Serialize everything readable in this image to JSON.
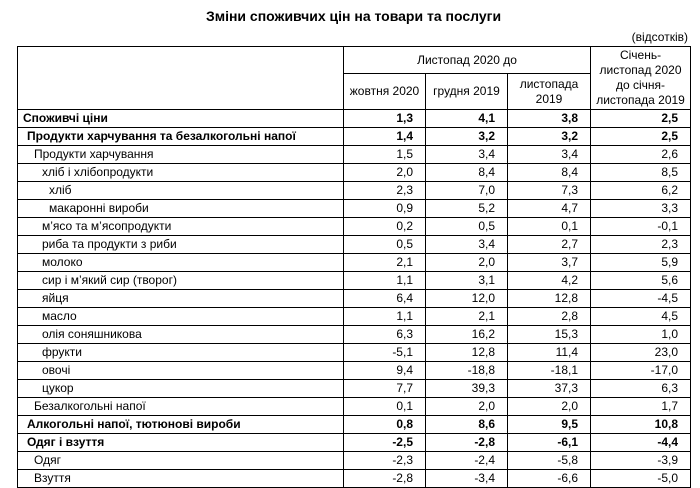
{
  "title": "Зміни споживчих цін на товари та послуги",
  "unit_note": "(відсотків)",
  "table": {
    "col_group_header": "Листопад 2020 до",
    "col_headers": [
      "жовтня 2020",
      "грудня 2019",
      "листопада 2019"
    ],
    "last_col_header": "Січень-листопад 2020 до січня-листопада 2019",
    "rows": [
      {
        "label": "Споживчі ціни",
        "bold": true,
        "indent": 0,
        "values": [
          "1,3",
          "4,1",
          "3,8",
          "2,5"
        ]
      },
      {
        "label": "Продукти харчування та безалкогольні напої",
        "bold": true,
        "indent": 1,
        "values": [
          "1,4",
          "3,2",
          "3,2",
          "2,5"
        ]
      },
      {
        "label": "Продукти харчування",
        "bold": false,
        "indent": 2,
        "values": [
          "1,5",
          "3,4",
          "3,4",
          "2,6"
        ]
      },
      {
        "label": "хліб і хлібопродукти",
        "bold": false,
        "indent": 3,
        "values": [
          "2,0",
          "8,4",
          "8,4",
          "8,5"
        ]
      },
      {
        "label": "хліб",
        "bold": false,
        "indent": 4,
        "values": [
          "2,3",
          "7,0",
          "7,3",
          "6,2"
        ]
      },
      {
        "label": "макаронні вироби",
        "bold": false,
        "indent": 4,
        "values": [
          "0,9",
          "5,2",
          "4,7",
          "3,3"
        ]
      },
      {
        "label": "м’ясо та м’ясопродукти",
        "bold": false,
        "indent": 3,
        "values": [
          "0,2",
          "0,5",
          "0,1",
          "-0,1"
        ]
      },
      {
        "label": "риба та продукти з риби",
        "bold": false,
        "indent": 3,
        "values": [
          "0,5",
          "3,4",
          "2,7",
          "2,3"
        ]
      },
      {
        "label": "молоко",
        "bold": false,
        "indent": 3,
        "values": [
          "2,1",
          "2,0",
          "3,7",
          "5,9"
        ]
      },
      {
        "label": "сир і м’який сир (творог)",
        "bold": false,
        "indent": 3,
        "values": [
          "1,1",
          "3,1",
          "4,2",
          "5,6"
        ]
      },
      {
        "label": "яйця",
        "bold": false,
        "indent": 3,
        "values": [
          "6,4",
          "12,0",
          "12,8",
          "-4,5"
        ]
      },
      {
        "label": "масло",
        "bold": false,
        "indent": 3,
        "values": [
          "1,1",
          "2,1",
          "2,8",
          "4,5"
        ]
      },
      {
        "label": "олія соняшникова",
        "bold": false,
        "indent": 3,
        "values": [
          "6,3",
          "16,2",
          "15,3",
          "1,0"
        ]
      },
      {
        "label": "фрукти",
        "bold": false,
        "indent": 3,
        "values": [
          "-5,1",
          "12,8",
          "11,4",
          "23,0"
        ]
      },
      {
        "label": "овочі",
        "bold": false,
        "indent": 3,
        "values": [
          "9,4",
          "-18,8",
          "-18,1",
          "-17,0"
        ]
      },
      {
        "label": "цукор",
        "bold": false,
        "indent": 3,
        "values": [
          "7,7",
          "39,3",
          "37,3",
          "6,3"
        ]
      },
      {
        "label": "Безалкогольні напої",
        "bold": false,
        "indent": 2,
        "values": [
          "0,1",
          "2,0",
          "2,0",
          "1,7"
        ]
      },
      {
        "label": "Алкогольні напої, тютюнові вироби",
        "bold": true,
        "indent": 1,
        "values": [
          "0,8",
          "8,6",
          "9,5",
          "10,8"
        ]
      },
      {
        "label": "Одяг і взуття",
        "bold": true,
        "indent": 1,
        "values": [
          "-2,5",
          "-2,8",
          "-6,1",
          "-4,4"
        ]
      },
      {
        "label": "Одяг",
        "bold": false,
        "indent": 2,
        "values": [
          "-2,3",
          "-2,4",
          "-5,8",
          "-3,9"
        ]
      },
      {
        "label": "Взуття",
        "bold": false,
        "indent": 2,
        "values": [
          "-2,8",
          "-3,4",
          "-6,6",
          "-5,0"
        ]
      }
    ]
  }
}
